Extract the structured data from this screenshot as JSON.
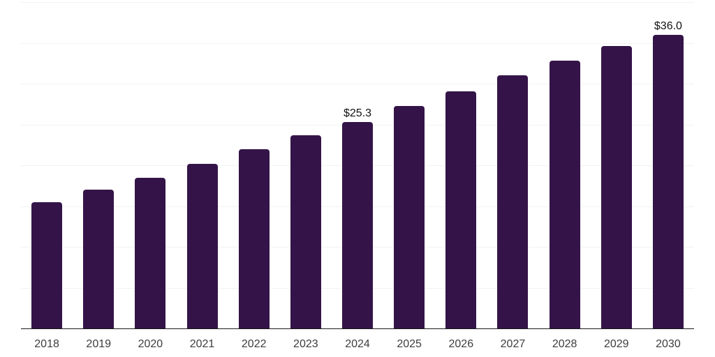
{
  "window": {
    "background": "#ffffff"
  },
  "chart_data": {
    "type": "bar",
    "title": "",
    "categories": [
      "2018",
      "2019",
      "2020",
      "2021",
      "2022",
      "2023",
      "2024",
      "2025",
      "2026",
      "2027",
      "2028",
      "2029",
      "2030"
    ],
    "values": [
      15.5,
      17.0,
      18.5,
      20.2,
      22.0,
      23.7,
      25.3,
      27.3,
      29.1,
      31.0,
      32.8,
      34.6,
      36.0
    ],
    "data_labels": [
      {
        "category": "2024",
        "text": "$25.3"
      },
      {
        "category": "2030",
        "text": "$36.0"
      }
    ],
    "xlabel": "",
    "ylabel": "",
    "ylim": [
      0,
      40
    ],
    "gridline_step": 5,
    "grid": true,
    "legend": "none",
    "value_prefix": "$"
  },
  "style": {
    "bar_color": "#341448",
    "gridline_color": "#f2f2f4",
    "axis_line_color": "#1a1a1a",
    "axis_label_color": "#3d3d3d",
    "data_label_color": "#111111",
    "background_color": "#ffffff"
  }
}
